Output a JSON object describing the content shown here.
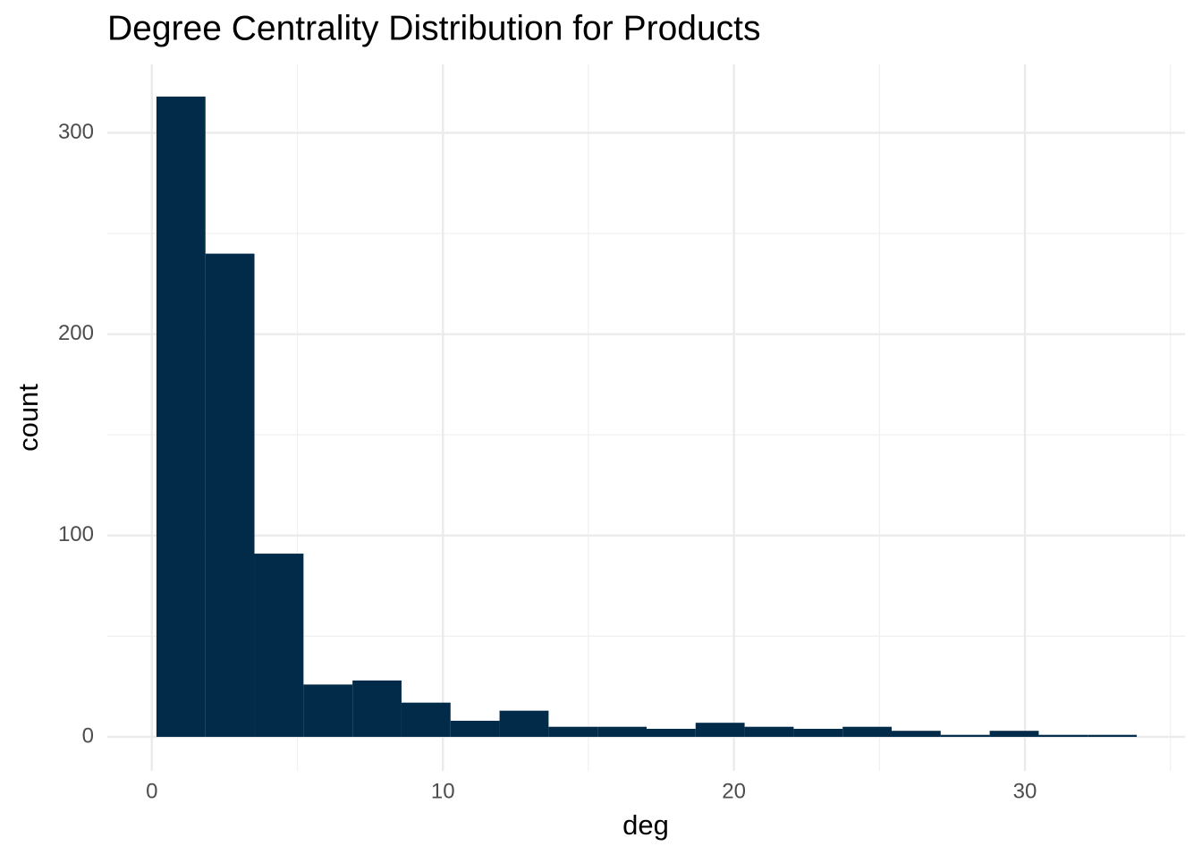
{
  "chart_data": {
    "type": "histogram",
    "title": "Degree Centrality Distribution for Products",
    "x_label": "deg",
    "y_label": "count",
    "bins": [
      0.158,
      1.842,
      3.526,
      5.211,
      6.895,
      8.579,
      10.263,
      11.947,
      13.632,
      15.316,
      17.0,
      18.684,
      20.368,
      22.053,
      23.737,
      25.421,
      27.105,
      28.789,
      30.474,
      32.158,
      33.842
    ],
    "values": [
      318,
      240,
      91,
      26,
      28,
      17,
      8,
      13,
      5,
      5,
      4,
      7,
      5,
      4,
      5,
      3,
      1,
      3,
      1,
      1
    ],
    "color": "#022b49",
    "xlim": [
      -1.53,
      35.5
    ],
    "xticks": [
      0,
      10,
      20,
      30
    ],
    "xminor": [
      5,
      15,
      25,
      35
    ],
    "ylim": [
      -16.9,
      334
    ],
    "yticks": [
      0,
      100,
      200,
      300
    ],
    "yminor": [
      50,
      150,
      250
    ],
    "grid": true
  }
}
